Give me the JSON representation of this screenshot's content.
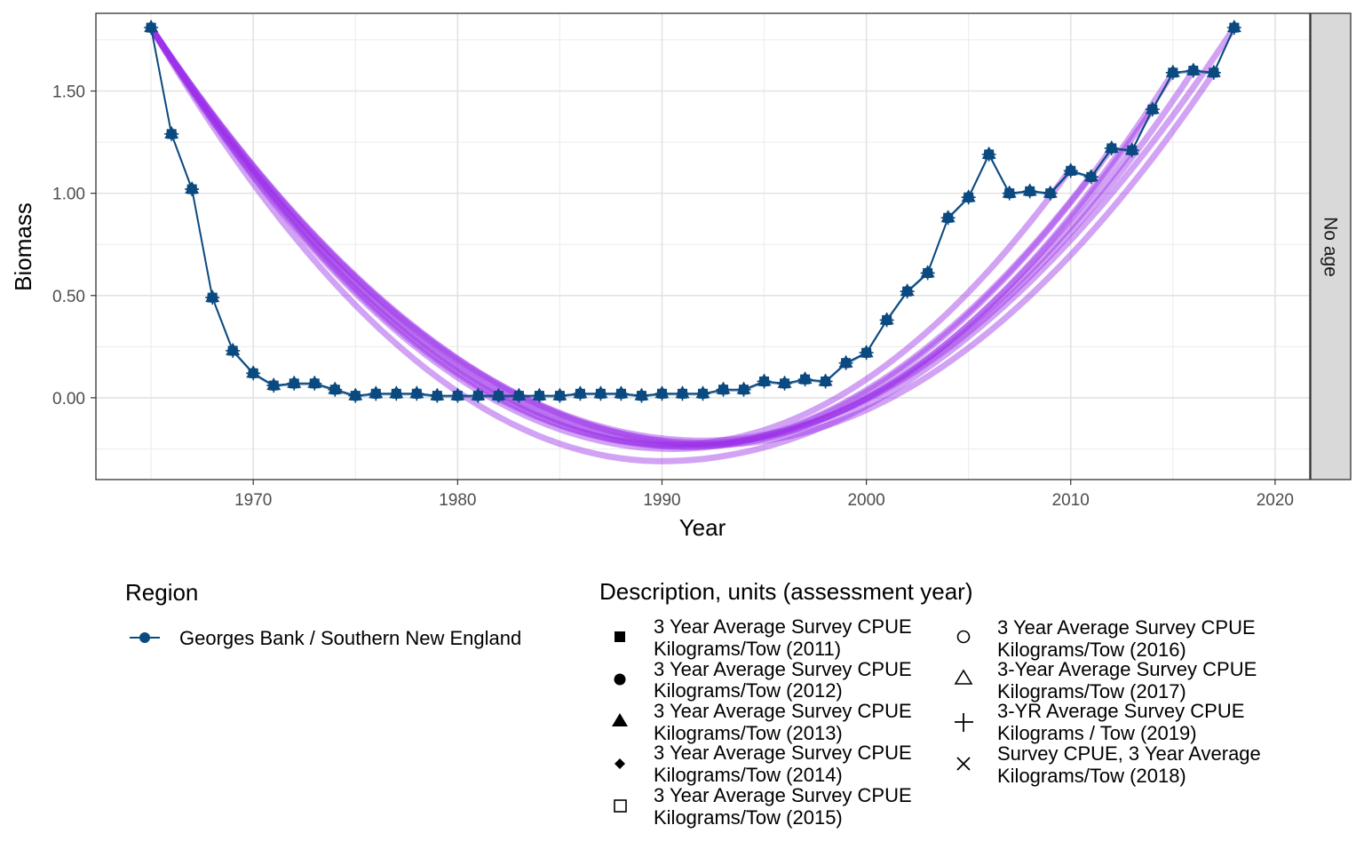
{
  "chart_data": {
    "type": "line",
    "xlabel": "Year",
    "ylabel": "Biomass",
    "xlim": [
      1962.3,
      2021.7
    ],
    "ylim": [
      -0.4,
      1.88
    ],
    "x_ticks": [
      1970,
      1980,
      1990,
      2000,
      2010,
      2020
    ],
    "x_tick_labels": [
      "1970",
      "1980",
      "1990",
      "2000",
      "2010",
      "2020"
    ],
    "y_ticks": [
      0,
      0.5,
      1,
      1.5
    ],
    "y_tick_labels": [
      "0.00",
      "0.50",
      "1.00",
      "1.50"
    ],
    "facet_label": "No age",
    "grid": true,
    "colors": {
      "series": "#0b4a80",
      "trend": "#9b30e8",
      "strip": "#d9d9d9"
    },
    "series": [
      {
        "name": "Georges Bank / Southern New England",
        "x": [
          1965,
          1966,
          1967,
          1968,
          1969,
          1970,
          1971,
          1972,
          1973,
          1974,
          1975,
          1976,
          1977,
          1978,
          1979,
          1980,
          1981,
          1982,
          1983,
          1984,
          1985,
          1986,
          1987,
          1988,
          1989,
          1990,
          1991,
          1992,
          1993,
          1994,
          1995,
          1996,
          1997,
          1998,
          1999,
          2000,
          2001,
          2002,
          2003,
          2004,
          2005,
          2006,
          2007,
          2008,
          2009,
          2010,
          2011,
          2012,
          2013,
          2014,
          2015,
          2016,
          2017,
          2018
        ],
        "y": [
          1.81,
          1.29,
          1.02,
          0.49,
          0.23,
          0.12,
          0.06,
          0.07,
          0.07,
          0.04,
          0.01,
          0.02,
          0.02,
          0.02,
          0.01,
          0.01,
          0.01,
          0.01,
          0.01,
          0.01,
          0.01,
          0.02,
          0.02,
          0.02,
          0.01,
          0.02,
          0.02,
          0.02,
          0.04,
          0.04,
          0.08,
          0.07,
          0.09,
          0.08,
          0.17,
          0.22,
          0.38,
          0.52,
          0.61,
          0.88,
          0.98,
          1.19,
          1.0,
          1.01,
          1.0,
          1.11,
          1.08,
          1.22,
          1.21,
          1.41,
          1.59,
          1.6,
          1.59,
          1.81
        ]
      }
    ],
    "trend_fits": [
      {
        "x": [
          1965,
          2010
        ],
        "vertex": [
          1990.5,
          -0.23
        ],
        "end_y": 1.12
      },
      {
        "x": [
          1965,
          2011
        ],
        "vertex": [
          1990.5,
          -0.25
        ],
        "end_y": 1.09
      },
      {
        "x": [
          1965,
          2012
        ],
        "vertex": [
          1991.0,
          -0.24
        ],
        "end_y": 1.22
      },
      {
        "x": [
          1965,
          2013
        ],
        "vertex": [
          1991.5,
          -0.23
        ],
        "end_y": 1.21
      },
      {
        "x": [
          1965,
          2014
        ],
        "vertex": [
          1991.5,
          -0.24
        ],
        "end_y": 1.41
      },
      {
        "x": [
          1965,
          2015
        ],
        "vertex": [
          1992.0,
          -0.22
        ],
        "end_y": 1.59
      },
      {
        "x": [
          1965,
          2016
        ],
        "vertex": [
          1992.0,
          -0.21
        ],
        "end_y": 1.6
      },
      {
        "x": [
          1965,
          2017
        ],
        "vertex": [
          1992.5,
          -0.23
        ],
        "end_y": 1.59
      },
      {
        "x": [
          1965,
          2018
        ],
        "vertex": [
          1990.0,
          -0.31
        ],
        "end_y": 1.81
      }
    ]
  },
  "legend": {
    "region_title": "Region",
    "region_items": [
      {
        "label": "Georges Bank / Southern New England",
        "icon": "line-circle-icon"
      }
    ],
    "description_title": "Description, units (assessment year)",
    "description_items": [
      {
        "line1": "3 Year Average Survey CPUE",
        "line2": "Kilograms/Tow (2011)",
        "icon": "filled-square-icon"
      },
      {
        "line1": "3 Year Average Survey CPUE",
        "line2": "Kilograms/Tow (2012)",
        "icon": "filled-circle-icon"
      },
      {
        "line1": "3 Year Average Survey CPUE",
        "line2": "Kilograms/Tow (2013)",
        "icon": "filled-triangle-icon"
      },
      {
        "line1": "3 Year Average Survey CPUE",
        "line2": "Kilograms/Tow (2014)",
        "icon": "filled-diamond-icon"
      },
      {
        "line1": "3 Year Average Survey CPUE",
        "line2": "Kilograms/Tow (2015)",
        "icon": "open-square-icon"
      },
      {
        "line1": "3 Year Average Survey CPUE",
        "line2": "Kilograms/Tow (2016)",
        "icon": "open-circle-icon"
      },
      {
        "line1": "3-Year Average Survey CPUE",
        "line2": "Kilograms/Tow (2017)",
        "icon": "open-triangle-icon"
      },
      {
        "line1": "3-YR Average Survey CPUE",
        "line2": "Kilograms / Tow (2019)",
        "icon": "plus-icon"
      },
      {
        "line1": "Survey CPUE, 3 Year Average",
        "line2": "Kilograms/Tow (2018)",
        "icon": "cross-icon"
      }
    ]
  }
}
